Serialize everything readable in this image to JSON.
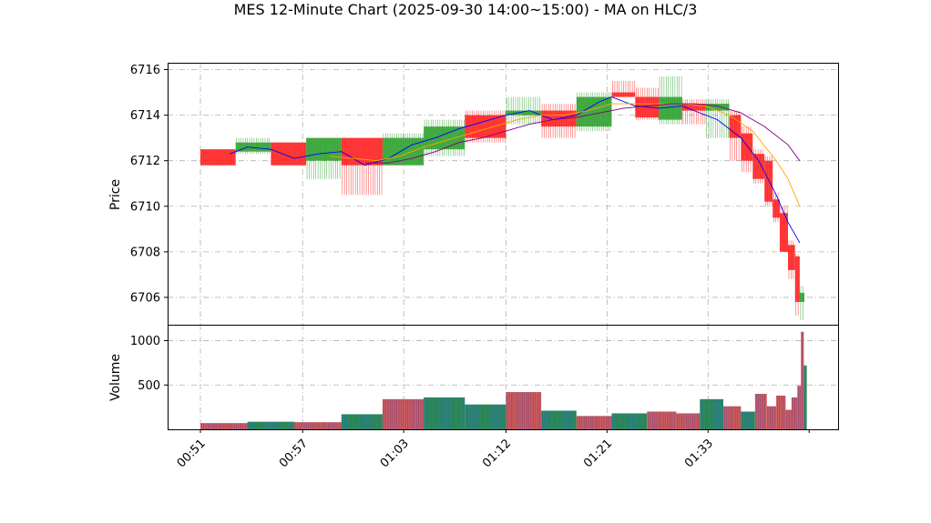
{
  "chart_data": {
    "type": "candlestick",
    "title": "MES 12-Minute Chart (2025-09-30 14:00~15:00) - MA on HLC/3",
    "x_tick_labels": [
      "00:51",
      "00:57",
      "01:03",
      "01:12",
      "01:21",
      "01:33"
    ],
    "price_panel": {
      "ylabel": "Price",
      "ylim": [
        6704.8,
        6716.3
      ],
      "yticks": [
        6706,
        6708,
        6710,
        6712,
        6714,
        6716
      ],
      "grid": true,
      "candles": [
        {
          "x": [
            0,
            3
          ],
          "open": 6712.5,
          "high": 6712.5,
          "low": 6711.8,
          "close": 6711.8
        },
        {
          "x": [
            3,
            6
          ],
          "open": 6712.4,
          "high": 6713.0,
          "low": 6712.3,
          "close": 6712.8
        },
        {
          "x": [
            6,
            9
          ],
          "open": 6712.8,
          "high": 6712.8,
          "low": 6711.8,
          "close": 6711.8
        },
        {
          "x": [
            9,
            12
          ],
          "open": 6712.0,
          "high": 6713.0,
          "low": 6711.2,
          "close": 6713.0
        },
        {
          "x": [
            12,
            15.5
          ],
          "open": 6713.0,
          "high": 6713.0,
          "low": 6710.5,
          "close": 6711.8
        },
        {
          "x": [
            15.5,
            19
          ],
          "open": 6711.8,
          "high": 6713.2,
          "low": 6711.8,
          "close": 6713.0
        },
        {
          "x": [
            19,
            22.5
          ],
          "open": 6712.5,
          "high": 6713.8,
          "low": 6712.2,
          "close": 6713.5
        },
        {
          "x": [
            22.5,
            26
          ],
          "open": 6714.0,
          "high": 6714.2,
          "low": 6712.8,
          "close": 6713.0
        },
        {
          "x": [
            26,
            29
          ],
          "open": 6714.0,
          "high": 6714.8,
          "low": 6713.6,
          "close": 6714.2
        },
        {
          "x": [
            29,
            32
          ],
          "open": 6714.2,
          "high": 6714.5,
          "low": 6713.0,
          "close": 6713.5
        },
        {
          "x": [
            32,
            35
          ],
          "open": 6713.5,
          "high": 6715.0,
          "low": 6713.3,
          "close": 6714.8
        },
        {
          "x": [
            35,
            37
          ],
          "open": 6715.0,
          "high": 6715.5,
          "low": 6714.8,
          "close": 6714.8
        },
        {
          "x": [
            37,
            39
          ],
          "open": 6714.8,
          "high": 6715.2,
          "low": 6713.8,
          "close": 6713.9
        },
        {
          "x": [
            39,
            41
          ],
          "open": 6713.8,
          "high": 6715.7,
          "low": 6713.6,
          "close": 6714.8
        },
        {
          "x": [
            41,
            43
          ],
          "open": 6714.5,
          "high": 6714.7,
          "low": 6713.6,
          "close": 6714.2
        },
        {
          "x": [
            43,
            45
          ],
          "open": 6714.2,
          "high": 6714.7,
          "low": 6713.0,
          "close": 6714.5
        },
        {
          "x": [
            45,
            46
          ],
          "open": 6714.0,
          "high": 6714.2,
          "low": 6712.0,
          "close": 6713.0
        },
        {
          "x": [
            46,
            47
          ],
          "open": 6713.2,
          "high": 6713.5,
          "low": 6711.5,
          "close": 6712.0
        },
        {
          "x": [
            47,
            48
          ],
          "open": 6712.3,
          "high": 6712.5,
          "low": 6711.0,
          "close": 6711.2
        },
        {
          "x": [
            48,
            48.7
          ],
          "open": 6712.0,
          "high": 6712.2,
          "low": 6710.0,
          "close": 6710.2
        },
        {
          "x": [
            48.7,
            49.3
          ],
          "open": 6710.3,
          "high": 6710.6,
          "low": 6709.3,
          "close": 6709.5
        },
        {
          "x": [
            49.3,
            50
          ],
          "open": 6709.7,
          "high": 6710.0,
          "low": 6708.0,
          "close": 6708.0
        },
        {
          "x": [
            50,
            50.6
          ],
          "open": 6708.3,
          "high": 6708.5,
          "low": 6706.8,
          "close": 6707.2
        },
        {
          "x": [
            50.6,
            51
          ],
          "open": 6707.8,
          "high": 6707.9,
          "low": 6705.2,
          "close": 6705.8
        },
        {
          "x": [
            51,
            51.4
          ],
          "open": 6705.8,
          "high": 6706.5,
          "low": 6705.0,
          "close": 6706.2
        }
      ],
      "moving_averages": [
        {
          "color": "#0000ff",
          "points": [
            [
              2.5,
              6712.3
            ],
            [
              4,
              6712.6
            ],
            [
              6,
              6712.5
            ],
            [
              8,
              6712.1
            ],
            [
              10,
              6712.3
            ],
            [
              12,
              6712.4
            ],
            [
              14,
              6711.8
            ],
            [
              16,
              6712.1
            ],
            [
              18,
              6712.7
            ],
            [
              20,
              6713.0
            ],
            [
              22,
              6713.4
            ],
            [
              24,
              6713.7
            ],
            [
              26,
              6714.0
            ],
            [
              28,
              6714.2
            ],
            [
              30,
              6713.8
            ],
            [
              32,
              6714.0
            ],
            [
              34,
              6714.6
            ],
            [
              35,
              6714.8
            ],
            [
              37,
              6714.4
            ],
            [
              39,
              6714.3
            ],
            [
              41,
              6714.4
            ],
            [
              42,
              6714.2
            ],
            [
              44,
              6713.8
            ],
            [
              46,
              6713.0
            ],
            [
              47.5,
              6712.0
            ],
            [
              49,
              6710.5
            ],
            [
              50,
              6709.3
            ],
            [
              51,
              6708.4
            ]
          ]
        },
        {
          "color": "#ffa500",
          "points": [
            [
              11,
              6712.2
            ],
            [
              13,
              6712.1
            ],
            [
              15,
              6712.0
            ],
            [
              17,
              6712.2
            ],
            [
              19,
              6712.6
            ],
            [
              21,
              6712.9
            ],
            [
              23,
              6713.2
            ],
            [
              25,
              6713.5
            ],
            [
              27,
              6713.8
            ],
            [
              29,
              6714.0
            ],
            [
              31,
              6714.0
            ],
            [
              33,
              6714.2
            ],
            [
              35,
              6714.5
            ],
            [
              37,
              6714.5
            ],
            [
              39,
              6714.5
            ],
            [
              41,
              6714.5
            ],
            [
              43,
              6714.4
            ],
            [
              45,
              6714.0
            ],
            [
              47,
              6713.3
            ],
            [
              49,
              6712.0
            ],
            [
              50,
              6711.2
            ],
            [
              51,
              6710.0
            ]
          ]
        },
        {
          "color": "#800080",
          "points": [
            [
              14,
              6711.9
            ],
            [
              16,
              6711.9
            ],
            [
              18,
              6712.1
            ],
            [
              20,
              6712.4
            ],
            [
              22,
              6712.8
            ],
            [
              24,
              6713.0
            ],
            [
              26,
              6713.3
            ],
            [
              28,
              6713.6
            ],
            [
              30,
              6713.8
            ],
            [
              32,
              6713.9
            ],
            [
              34,
              6714.1
            ],
            [
              36,
              6714.3
            ],
            [
              38,
              6714.4
            ],
            [
              40,
              6714.5
            ],
            [
              42,
              6714.5
            ],
            [
              44,
              6714.4
            ],
            [
              46,
              6714.1
            ],
            [
              48,
              6713.5
            ],
            [
              50,
              6712.7
            ],
            [
              51,
              6712.0
            ]
          ]
        }
      ]
    },
    "volume_panel": {
      "ylabel": "Volume",
      "ylim": [
        0,
        1180
      ],
      "yticks": [
        500,
        1000
      ],
      "grid": true,
      "bars": [
        {
          "x": [
            0,
            4
          ],
          "value": 70,
          "color": "#cd5c5c"
        },
        {
          "x": [
            4,
            8
          ],
          "value": 85,
          "color": "#2e8b57"
        },
        {
          "x": [
            8,
            12
          ],
          "value": 80,
          "color": "#cd5c5c"
        },
        {
          "x": [
            12,
            15.5
          ],
          "value": 170,
          "color": "#2e8b57"
        },
        {
          "x": [
            15.5,
            19
          ],
          "value": 340,
          "color": "#cd5c5c"
        },
        {
          "x": [
            19,
            22.5
          ],
          "value": 360,
          "color": "#2e8b57"
        },
        {
          "x": [
            22.5,
            26
          ],
          "value": 280,
          "color": "#2e8b57"
        },
        {
          "x": [
            26,
            29
          ],
          "value": 420,
          "color": "#cd5c5c"
        },
        {
          "x": [
            29,
            32
          ],
          "value": 210,
          "color": "#2e8b57"
        },
        {
          "x": [
            32,
            35
          ],
          "value": 150,
          "color": "#cd5c5c"
        },
        {
          "x": [
            35,
            38
          ],
          "value": 180,
          "color": "#2e8b57"
        },
        {
          "x": [
            38,
            40.5
          ],
          "value": 200,
          "color": "#cd5c5c"
        },
        {
          "x": [
            40.5,
            42.5
          ],
          "value": 180,
          "color": "#cd5c5c"
        },
        {
          "x": [
            42.5,
            44.5
          ],
          "value": 340,
          "color": "#2e8b57"
        },
        {
          "x": [
            44.5,
            46
          ],
          "value": 260,
          "color": "#cd5c5c"
        },
        {
          "x": [
            46,
            47.2
          ],
          "value": 200,
          "color": "#2e8b57"
        },
        {
          "x": [
            47.2,
            48.2
          ],
          "value": 400,
          "color": "#cd5c5c"
        },
        {
          "x": [
            48.2,
            49
          ],
          "value": 260,
          "color": "#cd5c5c"
        },
        {
          "x": [
            49,
            49.8
          ],
          "value": 380,
          "color": "#cd5c5c"
        },
        {
          "x": [
            49.8,
            50.3
          ],
          "value": 220,
          "color": "#cd5c5c"
        },
        {
          "x": [
            50.3,
            50.8
          ],
          "value": 360,
          "color": "#cd5c5c"
        },
        {
          "x": [
            50.8,
            51.1
          ],
          "value": 490,
          "color": "#cd5c5c"
        },
        {
          "x": [
            51.1,
            51.35
          ],
          "value": 1100,
          "color": "#cd5c5c"
        },
        {
          "x": [
            51.35,
            51.6
          ],
          "value": 720,
          "color": "#2e8b57"
        }
      ]
    },
    "colors": {
      "up": "#2ca02c",
      "down": "#ff2020",
      "grid": "#b0b0b0"
    }
  }
}
